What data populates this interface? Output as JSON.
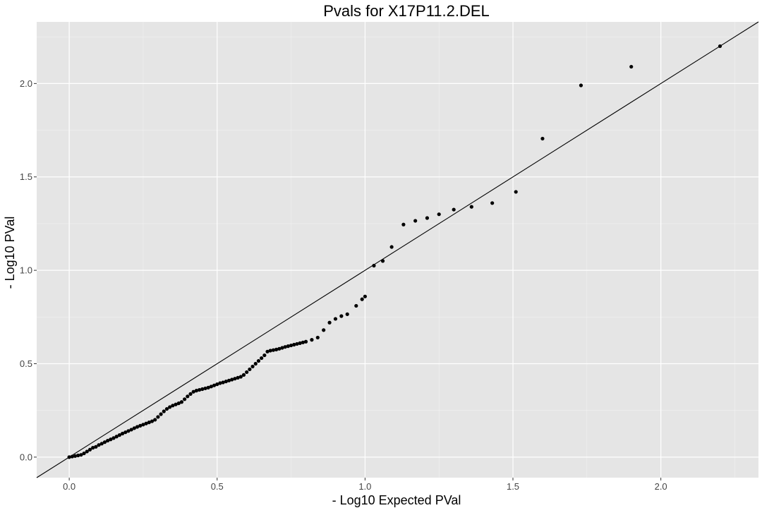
{
  "chart_data": {
    "type": "scatter",
    "title": "Pvals for X17P11.2.DEL",
    "xlabel": "- Log10 Expected PVal",
    "ylabel": "- Log10 PVal",
    "xlim": [
      -0.11,
      2.33
    ],
    "ylim": [
      -0.11,
      2.33
    ],
    "x_ticks": [
      0.0,
      0.5,
      1.0,
      1.5,
      2.0
    ],
    "y_ticks": [
      0.0,
      0.5,
      1.0,
      1.5,
      2.0
    ],
    "x_tick_labels": [
      "0.0",
      "0.5",
      "1.0",
      "1.5",
      "2.0"
    ],
    "y_tick_labels": [
      "0.0",
      "0.5",
      "1.0",
      "1.5",
      "2.0"
    ],
    "grid": true,
    "reference_line": {
      "slope": 1,
      "intercept": 0
    },
    "series": [
      {
        "points": [
          [
            0.0,
            0.0
          ],
          [
            0.01,
            0.003
          ],
          [
            0.02,
            0.006
          ],
          [
            0.03,
            0.009
          ],
          [
            0.04,
            0.012
          ],
          [
            0.05,
            0.02
          ],
          [
            0.06,
            0.03
          ],
          [
            0.07,
            0.04
          ],
          [
            0.08,
            0.05
          ],
          [
            0.09,
            0.055
          ],
          [
            0.1,
            0.065
          ],
          [
            0.11,
            0.072
          ],
          [
            0.12,
            0.08
          ],
          [
            0.13,
            0.088
          ],
          [
            0.14,
            0.095
          ],
          [
            0.15,
            0.102
          ],
          [
            0.16,
            0.11
          ],
          [
            0.17,
            0.118
          ],
          [
            0.18,
            0.126
          ],
          [
            0.19,
            0.133
          ],
          [
            0.2,
            0.14
          ],
          [
            0.21,
            0.147
          ],
          [
            0.22,
            0.155
          ],
          [
            0.23,
            0.162
          ],
          [
            0.24,
            0.168
          ],
          [
            0.25,
            0.174
          ],
          [
            0.26,
            0.18
          ],
          [
            0.27,
            0.186
          ],
          [
            0.28,
            0.192
          ],
          [
            0.29,
            0.2
          ],
          [
            0.3,
            0.215
          ],
          [
            0.31,
            0.23
          ],
          [
            0.32,
            0.245
          ],
          [
            0.33,
            0.258
          ],
          [
            0.34,
            0.268
          ],
          [
            0.35,
            0.276
          ],
          [
            0.36,
            0.282
          ],
          [
            0.37,
            0.288
          ],
          [
            0.38,
            0.295
          ],
          [
            0.39,
            0.31
          ],
          [
            0.4,
            0.325
          ],
          [
            0.41,
            0.338
          ],
          [
            0.42,
            0.35
          ],
          [
            0.43,
            0.356
          ],
          [
            0.44,
            0.36
          ],
          [
            0.45,
            0.364
          ],
          [
            0.46,
            0.368
          ],
          [
            0.47,
            0.372
          ],
          [
            0.48,
            0.378
          ],
          [
            0.49,
            0.384
          ],
          [
            0.5,
            0.39
          ],
          [
            0.51,
            0.396
          ],
          [
            0.52,
            0.4
          ],
          [
            0.53,
            0.405
          ],
          [
            0.54,
            0.41
          ],
          [
            0.55,
            0.415
          ],
          [
            0.56,
            0.42
          ],
          [
            0.57,
            0.425
          ],
          [
            0.58,
            0.43
          ],
          [
            0.59,
            0.44
          ],
          [
            0.6,
            0.455
          ],
          [
            0.61,
            0.47
          ],
          [
            0.62,
            0.485
          ],
          [
            0.63,
            0.5
          ],
          [
            0.64,
            0.515
          ],
          [
            0.65,
            0.53
          ],
          [
            0.66,
            0.545
          ],
          [
            0.67,
            0.565
          ],
          [
            0.68,
            0.57
          ],
          [
            0.69,
            0.573
          ],
          [
            0.7,
            0.576
          ],
          [
            0.71,
            0.58
          ],
          [
            0.72,
            0.585
          ],
          [
            0.73,
            0.59
          ],
          [
            0.74,
            0.594
          ],
          [
            0.75,
            0.598
          ],
          [
            0.76,
            0.602
          ],
          [
            0.77,
            0.606
          ],
          [
            0.78,
            0.61
          ],
          [
            0.79,
            0.614
          ],
          [
            0.8,
            0.618
          ],
          [
            0.82,
            0.628
          ],
          [
            0.84,
            0.64
          ],
          [
            0.86,
            0.68
          ],
          [
            0.88,
            0.72
          ],
          [
            0.9,
            0.74
          ],
          [
            0.92,
            0.755
          ],
          [
            0.94,
            0.765
          ],
          [
            0.97,
            0.81
          ],
          [
            0.99,
            0.845
          ],
          [
            1.0,
            0.86
          ],
          [
            1.03,
            1.025
          ],
          [
            1.06,
            1.05
          ],
          [
            1.09,
            1.125
          ],
          [
            1.13,
            1.245
          ],
          [
            1.17,
            1.265
          ],
          [
            1.21,
            1.28
          ],
          [
            1.25,
            1.3
          ],
          [
            1.3,
            1.325
          ],
          [
            1.36,
            1.34
          ],
          [
            1.43,
            1.36
          ],
          [
            1.51,
            1.42
          ],
          [
            1.6,
            1.705
          ],
          [
            1.73,
            1.99
          ],
          [
            1.9,
            2.09
          ],
          [
            2.2,
            2.2
          ]
        ]
      }
    ]
  }
}
